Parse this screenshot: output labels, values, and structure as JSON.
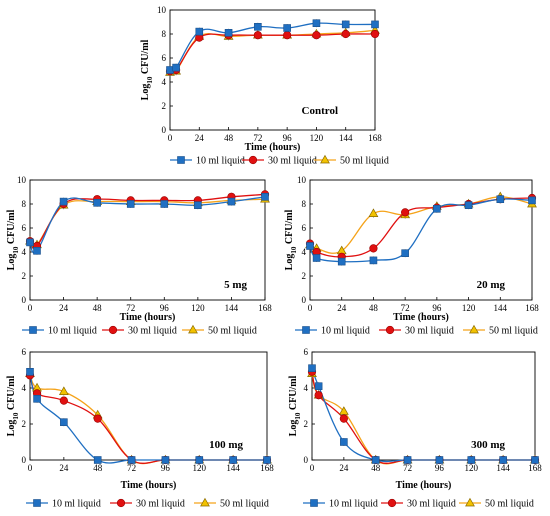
{
  "legend_labels": [
    "10 ml liquid",
    "30 ml liquid",
    "50 ml liquid"
  ],
  "colors": {
    "s10": "#1f6fc2",
    "s30": "#e01010",
    "s50": "#f2c200",
    "s50_line": "#f5a31a"
  },
  "chart_data": [
    {
      "type": "line",
      "title": "Control",
      "xlabel": "Time (hours)",
      "ylabel": "Log10 CFU/ml",
      "x": [
        0,
        5,
        24,
        48,
        72,
        96,
        120,
        144,
        168
      ],
      "xlim": [
        0,
        168
      ],
      "ylim": [
        0,
        10
      ],
      "xticks": [
        0,
        24,
        48,
        72,
        96,
        120,
        144,
        168
      ],
      "yticks": [
        0,
        2,
        4,
        6,
        8,
        10
      ],
      "series": [
        {
          "name": "10 ml liquid",
          "values": [
            5.0,
            5.2,
            8.2,
            8.1,
            8.6,
            8.5,
            8.9,
            8.8,
            8.8
          ]
        },
        {
          "name": "30 ml liquid",
          "values": [
            4.9,
            5.0,
            7.7,
            7.9,
            7.9,
            7.9,
            7.9,
            8.0,
            8.0
          ]
        },
        {
          "name": "50 ml liquid",
          "values": [
            4.8,
            4.9,
            7.8,
            7.8,
            7.9,
            7.9,
            8.0,
            8.1,
            8.3
          ]
        }
      ]
    },
    {
      "type": "line",
      "title": "5 mg",
      "xlabel": "Time (hours)",
      "ylabel": "Log10 CFU/ml",
      "x": [
        0,
        5,
        24,
        48,
        72,
        96,
        120,
        144,
        168
      ],
      "xlim": [
        0,
        168
      ],
      "ylim": [
        0,
        10
      ],
      "xticks": [
        0,
        24,
        48,
        72,
        96,
        120,
        144,
        168
      ],
      "yticks": [
        0,
        2,
        4,
        6,
        8,
        10
      ],
      "series": [
        {
          "name": "10 ml liquid",
          "values": [
            4.8,
            4.1,
            8.2,
            8.1,
            8.0,
            8.0,
            7.9,
            8.2,
            8.6
          ]
        },
        {
          "name": "30 ml liquid",
          "values": [
            4.9,
            4.5,
            8.0,
            8.4,
            8.3,
            8.3,
            8.3,
            8.6,
            8.8
          ]
        },
        {
          "name": "50 ml liquid",
          "values": [
            4.9,
            4.6,
            7.9,
            8.2,
            8.2,
            8.2,
            8.1,
            8.3,
            8.4
          ]
        }
      ]
    },
    {
      "type": "line",
      "title": "20 mg",
      "xlabel": "Time (hours)",
      "ylabel": "Log10 CFU/ml",
      "x": [
        0,
        5,
        24,
        48,
        72,
        96,
        120,
        144,
        168
      ],
      "xlim": [
        0,
        168
      ],
      "ylim": [
        0,
        10
      ],
      "xticks": [
        0,
        24,
        48,
        72,
        96,
        120,
        144,
        168
      ],
      "yticks": [
        0,
        2,
        4,
        6,
        8,
        10
      ],
      "series": [
        {
          "name": "10 ml liquid",
          "values": [
            4.5,
            3.5,
            3.2,
            3.3,
            3.9,
            7.6,
            7.9,
            8.4,
            8.3
          ]
        },
        {
          "name": "30 ml liquid",
          "values": [
            4.7,
            4.0,
            3.6,
            4.3,
            7.3,
            7.7,
            8.0,
            8.4,
            8.5
          ]
        },
        {
          "name": "50 ml liquid",
          "values": [
            4.6,
            4.3,
            4.1,
            7.2,
            7.1,
            7.8,
            8.0,
            8.6,
            8.0
          ]
        }
      ]
    },
    {
      "type": "line",
      "title": "100 mg",
      "xlabel": "Time (hours)",
      "ylabel": "Log10 CFU/ml",
      "x": [
        0,
        5,
        24,
        48,
        72,
        96,
        120,
        144,
        168
      ],
      "xlim": [
        0,
        168
      ],
      "ylim": [
        0,
        6
      ],
      "xticks": [
        0,
        24,
        48,
        72,
        96,
        120,
        144,
        168
      ],
      "yticks": [
        0,
        2,
        4,
        6
      ],
      "series": [
        {
          "name": "10 ml liquid",
          "values": [
            4.9,
            3.4,
            2.1,
            0,
            0,
            0,
            0,
            0,
            0
          ]
        },
        {
          "name": "30 ml liquid",
          "values": [
            4.7,
            3.7,
            3.3,
            2.3,
            0,
            0,
            0,
            0,
            0
          ]
        },
        {
          "name": "50 ml liquid",
          "values": [
            4.8,
            4.0,
            3.8,
            2.5,
            0,
            0,
            0,
            0,
            0
          ]
        }
      ]
    },
    {
      "type": "line",
      "title": "300 mg",
      "xlabel": "Time (hours)",
      "ylabel": "Log10 CFU/ml",
      "x": [
        0,
        5,
        24,
        48,
        72,
        96,
        120,
        144,
        168
      ],
      "xlim": [
        0,
        168
      ],
      "ylim": [
        0,
        6
      ],
      "xticks": [
        0,
        24,
        48,
        72,
        96,
        120,
        144,
        168
      ],
      "yticks": [
        0,
        2,
        4,
        6
      ],
      "series": [
        {
          "name": "10 ml liquid",
          "values": [
            5.1,
            4.1,
            1.0,
            0,
            0,
            0,
            0,
            0,
            0
          ]
        },
        {
          "name": "30 ml liquid",
          "values": [
            4.9,
            3.6,
            2.3,
            0,
            0,
            0,
            0,
            0,
            0
          ]
        },
        {
          "name": "50 ml liquid",
          "values": [
            4.8,
            3.6,
            2.7,
            0,
            0,
            0,
            0,
            0,
            0
          ]
        }
      ]
    }
  ]
}
